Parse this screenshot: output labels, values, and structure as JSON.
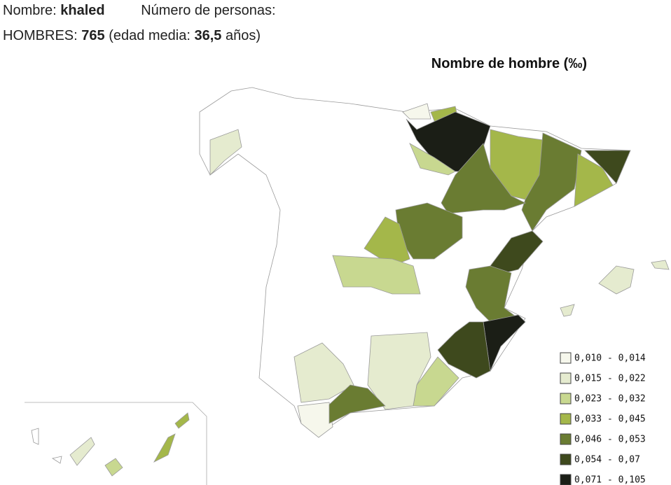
{
  "header": {
    "name_label": "Nombre:",
    "name": "khaled",
    "count_label": "Número de personas:",
    "men_label": "HOMBRES:",
    "men_count": "765",
    "age_open": "(edad media:",
    "age": "36,5",
    "age_close": "años)"
  },
  "map": {
    "title": "Nombre de hombre",
    "unit": "(‰)"
  },
  "legend": {
    "items": [
      {
        "label": "0,010 - 0,014",
        "color": "#f6f7ec"
      },
      {
        "label": "0,015 - 0,022",
        "color": "#e5ebcf"
      },
      {
        "label": "0,023 - 0,032",
        "color": "#c8d890"
      },
      {
        "label": "0,033 - 0,045",
        "color": "#a4b74a"
      },
      {
        "label": "0,046 - 0,053",
        "color": "#6a7c32"
      },
      {
        "label": "0,054 - 0,07",
        "color": "#3e491d"
      },
      {
        "label": "0,071 - 0,105",
        "color": "#1b1e16"
      }
    ]
  }
}
